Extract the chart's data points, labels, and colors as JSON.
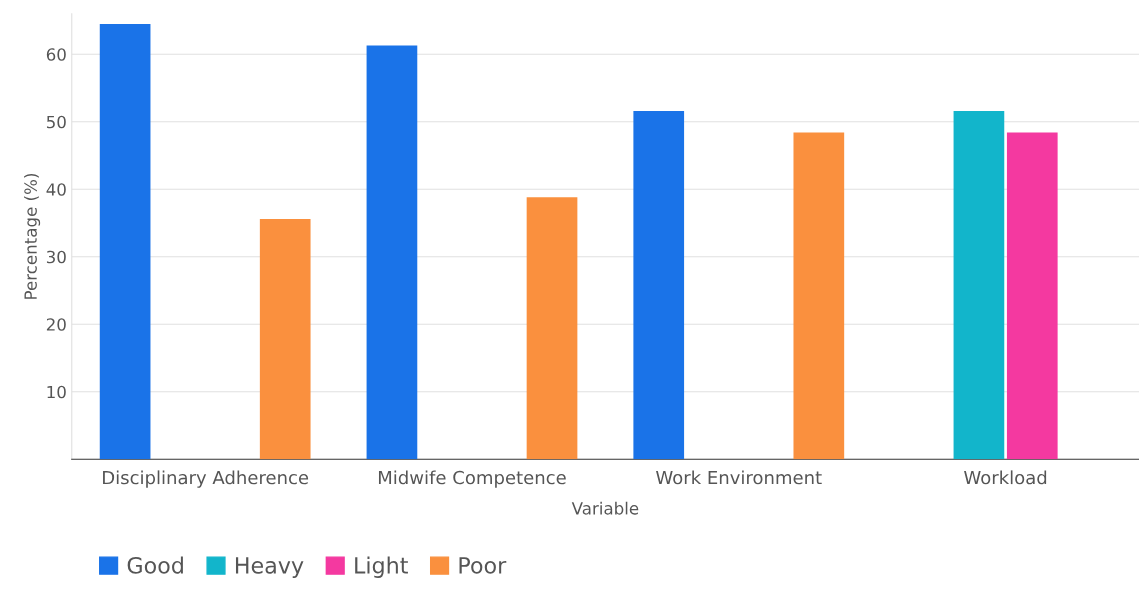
{
  "chart_data": {
    "type": "bar",
    "xlabel": "Variable",
    "ylabel": "Percentage (%)",
    "categories": [
      "Disciplinary Adherence",
      "Midwife Competence",
      "Work Environment",
      "Workload"
    ],
    "series": [
      {
        "name": "Good",
        "color": "#1a73e8",
        "values": [
          64.5,
          61.3,
          51.6,
          null
        ]
      },
      {
        "name": "Heavy",
        "color": "#12b5cb",
        "values": [
          null,
          null,
          null,
          51.6
        ]
      },
      {
        "name": "Light",
        "color": "#f439a0",
        "values": [
          null,
          null,
          null,
          48.4
        ]
      },
      {
        "name": "Poor",
        "color": "#fa903e",
        "values": [
          35.6,
          38.8,
          48.4,
          null
        ]
      }
    ],
    "ylim": [
      0,
      66
    ],
    "yticks": [
      10,
      20,
      30,
      40,
      50,
      60
    ],
    "grid": "y",
    "legend": "bottom left"
  }
}
